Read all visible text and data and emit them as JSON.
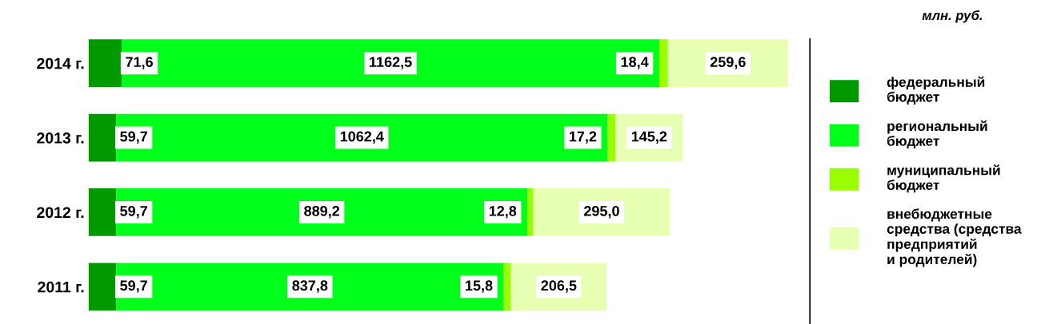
{
  "chart_data": {
    "type": "bar",
    "orientation": "horizontal",
    "stacked": true,
    "tick_labels": "y",
    "grid": false,
    "legend": "right",
    "categories": [
      "2014 г.",
      "2013 г.",
      "2012 г.",
      "2011 г."
    ],
    "series": [
      {
        "name": "федеральный\nбюджет",
        "color": "#009900",
        "values": [
          71.6,
          59.7,
          59.7,
          59.7
        ],
        "value_labels": [
          "71,6",
          "59,7",
          "59,7",
          "59,7"
        ]
      },
      {
        "name": "региональный\nбюджет",
        "color": "#00ff1a",
        "values": [
          1162.5,
          1062.4,
          889.2,
          837.8
        ],
        "value_labels": [
          "1162,5",
          "1062,4",
          "889,2",
          "837,8"
        ]
      },
      {
        "name": "муниципальный\nбюджет",
        "color": "#99ff00",
        "values": [
          18.4,
          17.2,
          12.8,
          15.8
        ],
        "value_labels": [
          "18,4",
          "17,2",
          "12,8",
          "15,8"
        ]
      },
      {
        "name": "внебюджетные\nсредства (средства\nпредприятий\nи родителей)",
        "color": "#e6ffb3",
        "values": [
          259.6,
          145.2,
          295.0,
          206.5
        ],
        "value_labels": [
          "259,6",
          "145,2",
          "295,0",
          "206,5"
        ]
      }
    ],
    "annotations": [
      "млн. руб."
    ]
  }
}
